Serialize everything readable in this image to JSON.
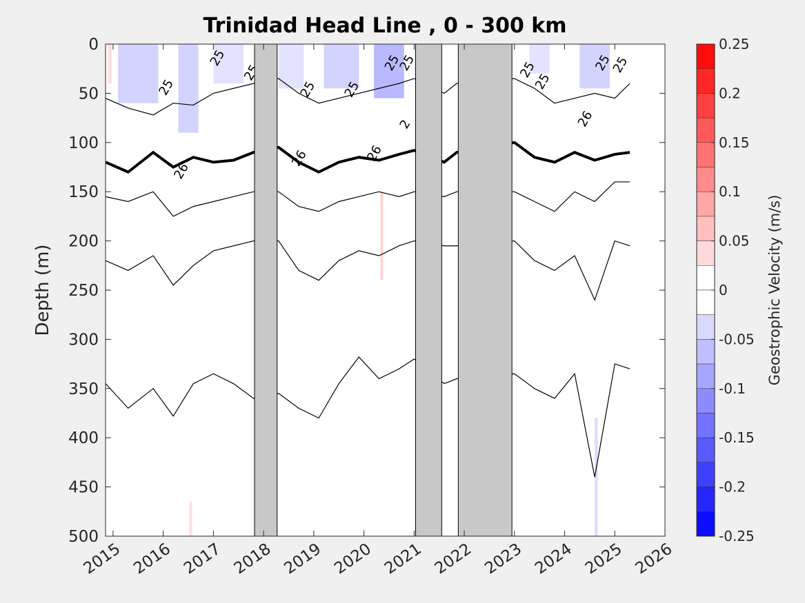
{
  "chart_data": {
    "type": "contour",
    "title": "Trinidad Head Line , 0 - 300 km",
    "xlabel": "",
    "ylabel": "Depth (m)",
    "x_ticks": [
      "2015",
      "2016",
      "2017",
      "2018",
      "2019",
      "2020",
      "2021",
      "2022",
      "2023",
      "2024",
      "2025",
      "2026"
    ],
    "xlim": [
      2014.85,
      2026.0
    ],
    "y_ticks": [
      0,
      50,
      100,
      150,
      200,
      250,
      300,
      350,
      400,
      450,
      500
    ],
    "ylim": [
      0,
      500
    ],
    "y_reversed": true,
    "colorbar": {
      "label": "Geostrophic Velocity (m/s)",
      "tick_labels": [
        "0.25",
        "0.2",
        "0.15",
        "0.1",
        "0.05",
        "0",
        "-0.05",
        "-0.1",
        "-0.15",
        "-0.2",
        "-0.25"
      ],
      "levels": [
        0.25,
        0.225,
        0.2,
        0.175,
        0.15,
        0.125,
        0.1,
        0.075,
        0.05,
        0.025,
        0,
        -0.025,
        -0.05,
        -0.075,
        -0.1,
        -0.125,
        -0.15,
        -0.175,
        -0.2,
        -0.225,
        -0.25
      ],
      "positive_color": "#ff0000",
      "negative_color": "#0000ff",
      "zero_color": "#ffffff"
    },
    "data_gaps": [
      {
        "start": 2017.82,
        "end": 2018.27
      },
      {
        "start": 2021.03,
        "end": 2021.55
      },
      {
        "start": 2021.88,
        "end": 2022.95
      }
    ],
    "contour_labels": [
      {
        "text": "25",
        "x": 2016.05,
        "y": 53
      },
      {
        "text": "25",
        "x": 2017.07,
        "y": 23
      },
      {
        "text": "25",
        "x": 2017.75,
        "y": 38
      },
      {
        "text": "25",
        "x": 2018.87,
        "y": 55
      },
      {
        "text": "25",
        "x": 2019.75,
        "y": 55
      },
      {
        "text": "25",
        "x": 2020.55,
        "y": 28
      },
      {
        "text": "25",
        "x": 2020.85,
        "y": 28
      },
      {
        "text": "26",
        "x": 2020.2,
        "y": 120
      },
      {
        "text": "26",
        "x": 2018.7,
        "y": 125
      },
      {
        "text": "26",
        "x": 2016.35,
        "y": 138
      },
      {
        "text": "2",
        "x": 2020.85,
        "y": 87
      },
      {
        "text": "25",
        "x": 2023.25,
        "y": 35
      },
      {
        "text": "25",
        "x": 2023.55,
        "y": 47
      },
      {
        "text": "26",
        "x": 2024.4,
        "y": 85
      },
      {
        "text": "25",
        "x": 2024.75,
        "y": 28
      },
      {
        "text": "25",
        "x": 2025.1,
        "y": 30
      }
    ],
    "isopycnal_depths": {
      "x": [
        2014.85,
        2015.3,
        2015.8,
        2016.2,
        2016.6,
        2017.0,
        2017.4,
        2017.8,
        2018.3,
        2018.7,
        2019.1,
        2019.5,
        2019.9,
        2020.3,
        2020.7,
        2021.0,
        2021.6,
        2021.85,
        2023.0,
        2023.4,
        2023.8,
        2024.2,
        2024.6,
        2025.0,
        2025.3
      ],
      "series": [
        {
          "name": "",
          "values": [
            55,
            65,
            72,
            60,
            62,
            50,
            45,
            40,
            35,
            50,
            60,
            55,
            50,
            45,
            40,
            35,
            50,
            40,
            35,
            45,
            60,
            55,
            50,
            55,
            40
          ]
        },
        {
          "name": "",
          "values": [
            120,
            130,
            110,
            125,
            115,
            120,
            118,
            110,
            105,
            120,
            130,
            120,
            115,
            118,
            112,
            108,
            120,
            110,
            100,
            115,
            120,
            110,
            118,
            112,
            110
          ]
        },
        {
          "name": "",
          "values": [
            155,
            160,
            150,
            175,
            165,
            160,
            155,
            150,
            150,
            165,
            170,
            160,
            155,
            150,
            155,
            150,
            155,
            150,
            150,
            160,
            170,
            150,
            160,
            140,
            140
          ]
        },
        {
          "name": "",
          "values": [
            220,
            230,
            215,
            245,
            225,
            210,
            205,
            200,
            200,
            230,
            240,
            220,
            210,
            215,
            205,
            200,
            205,
            205,
            200,
            220,
            230,
            215,
            260,
            200,
            205
          ]
        },
        {
          "name": "",
          "values": [
            345,
            370,
            350,
            378,
            345,
            335,
            345,
            360,
            355,
            370,
            380,
            345,
            318,
            340,
            330,
            320,
            345,
            340,
            335,
            350,
            360,
            335,
            440,
            325,
            330
          ]
        }
      ]
    }
  }
}
